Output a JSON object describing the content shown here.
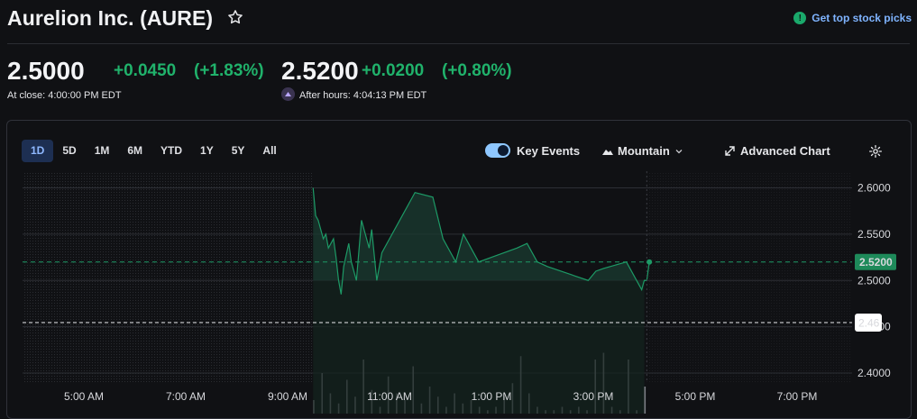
{
  "header": {
    "title": "Aurelion Inc. (AURE)",
    "top_picks": "Get top stock picks"
  },
  "quote": {
    "close_price": "2.5000",
    "close_change": "+0.0450",
    "close_change_pct": "(+1.83%)",
    "close_label": "At close: 4:00:00 PM EDT",
    "after_price": "2.5200",
    "after_change": "+0.0200",
    "after_change_pct": "(+0.80%)",
    "after_label": "After hours: 4:04:13 PM EDT"
  },
  "toolbar": {
    "ranges": [
      "1D",
      "5D",
      "1M",
      "6M",
      "YTD",
      "1Y",
      "5Y",
      "All"
    ],
    "active_range": "1D",
    "key_events": "Key Events",
    "key_events_on": true,
    "chart_style": "Mountain",
    "advanced": "Advanced Chart"
  },
  "colors": {
    "up": "#20b26b",
    "line": "#1d9a66",
    "accent": "#8fb8ff"
  },
  "chart_data": {
    "type": "area",
    "y_ticks": [
      "2.6000",
      "2.5500",
      "2.5000",
      "2.4500",
      "2.4000"
    ],
    "ylim": [
      2.38,
      2.615
    ],
    "x_ticks": [
      "5:00 AM",
      "7:00 AM",
      "9:00 AM",
      "11:00 AM",
      "1:00 PM",
      "3:00 PM",
      "5:00 PM",
      "7:00 PM"
    ],
    "x_range_hours": [
      4,
      20
    ],
    "previous_close": 2.455,
    "previous_close_label": "2.46",
    "last_price_label": "2.5200",
    "last_price": 2.52,
    "baseline": 2.5,
    "grid": true,
    "series": [
      {
        "x_hours": [
          9.5,
          9.55,
          9.6,
          9.7,
          9.75,
          9.8,
          9.9,
          9.95,
          10.0,
          10.05,
          10.1,
          10.2,
          10.25,
          10.35,
          10.45,
          10.55,
          10.6,
          10.65,
          10.75,
          10.85,
          11.0,
          11.3,
          11.5,
          11.85,
          12.05,
          12.3,
          12.45,
          12.75,
          13.0,
          13.5,
          13.7,
          13.9,
          14.1,
          14.9,
          15.05,
          15.2,
          15.65,
          15.95,
          16.0,
          16.05
        ],
        "values": [
          2.6,
          2.57,
          2.565,
          2.545,
          2.55,
          2.535,
          2.545,
          2.525,
          2.5,
          2.485,
          2.515,
          2.54,
          2.52,
          2.5,
          2.565,
          2.545,
          2.535,
          2.555,
          2.5,
          2.53,
          2.545,
          2.575,
          2.595,
          2.59,
          2.545,
          2.52,
          2.55,
          2.52,
          2.525,
          2.535,
          2.54,
          2.52,
          2.515,
          2.5,
          2.51,
          2.513,
          2.52,
          2.49,
          2.5,
          2.5
        ]
      },
      {
        "x_hours": [
          16.0,
          16.05,
          16.1
        ],
        "values": [
          2.5,
          2.5,
          2.52
        ]
      }
    ],
    "volume": [
      0.2,
      0.6,
      0.3,
      0.15,
      0.5,
      0.25,
      0.8,
      0.35,
      0.1,
      0.55,
      0.3,
      0.2,
      0.7,
      0.15,
      0.4,
      0.25,
      0.1,
      0.3,
      0.15,
      0.2,
      0.1,
      0.05,
      0.1,
      0.25,
      0.45,
      0.85,
      0.3,
      0.1,
      0.05,
      0.05,
      0.1,
      0.05,
      0.1,
      0.05,
      0.8,
      0.9,
      0.1,
      0.05,
      0.8,
      0.05,
      0.4
    ]
  }
}
